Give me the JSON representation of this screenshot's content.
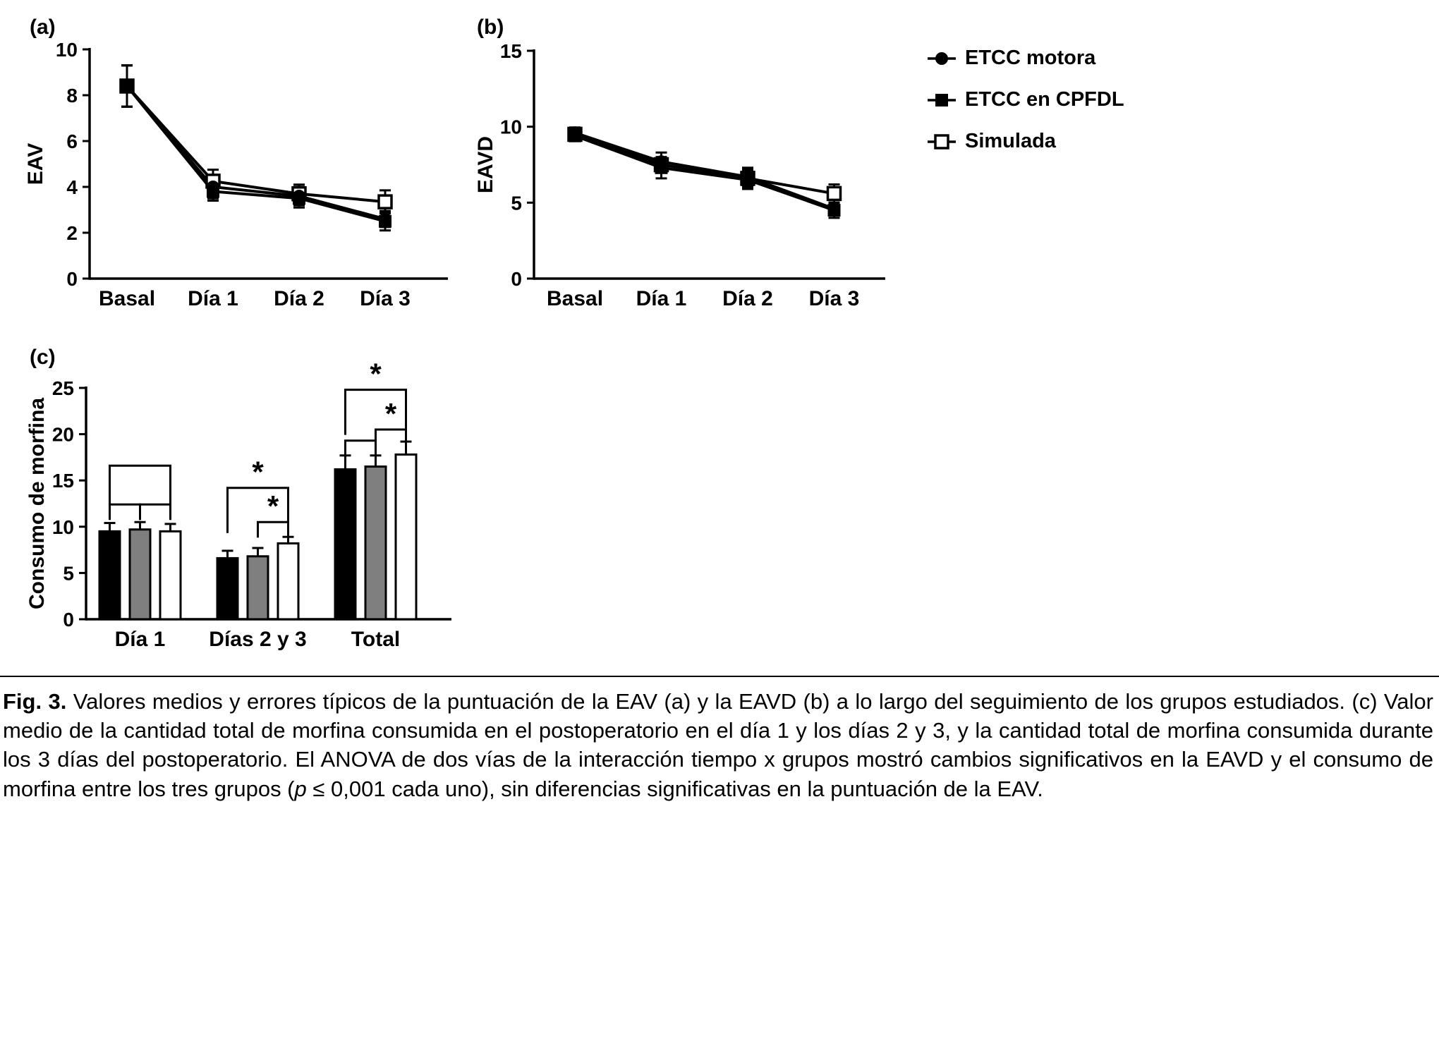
{
  "figure": {
    "legend": {
      "items": [
        {
          "label": "ETCC motora",
          "marker": "filled-circle"
        },
        {
          "label": "ETCC en CPFDL",
          "marker": "filled-square"
        },
        {
          "label": "Simulada",
          "marker": "open-square"
        }
      ]
    },
    "caption": {
      "parts": [
        {
          "text": "Fig. 3.",
          "style": "bold"
        },
        {
          "text": " Valores medios y errores típicos de la puntuación de la EAV (a) y la EAVD (b) a lo largo del seguimiento de los grupos estudiados. (c) Valor medio de la cantidad total de morfina consumida en el postoperatorio en el día 1 y los días 2 y 3, y la cantidad total de morfina consumida durante los 3 días del postoperatorio. El ANOVA de dos vías de la interacción tiempo x grupos mostró cambios significativos en la EAVD y el consumo de morfina entre los tres grupos (",
          "style": "normal"
        },
        {
          "text": "p",
          "style": "italic"
        },
        {
          "text": " ≤ 0,001 cada uno), sin diferencias significativas en la puntuación de la EAV.",
          "style": "normal"
        }
      ]
    }
  },
  "colors": {
    "black": "#000000",
    "gray": "#7f7f7f",
    "white": "#ffffff"
  },
  "chart_data": [
    {
      "id": "a",
      "type": "line",
      "panel_label": "(a)",
      "ylabel": "EAV",
      "xlabel": "",
      "ylim": [
        0,
        10
      ],
      "yticks": [
        0,
        2,
        4,
        6,
        8,
        10
      ],
      "grid": false,
      "legend_position": "top-right-shared",
      "categories": [
        "Basal",
        "Día 1",
        "Día 2",
        "Día 3"
      ],
      "series": [
        {
          "name": "ETCC motora",
          "marker": "filled-circle",
          "values": [
            8.4,
            4.0,
            3.6,
            2.6
          ],
          "errors": [
            0.9,
            0.5,
            0.4,
            0.35
          ]
        },
        {
          "name": "ETCC en CPFDL",
          "marker": "filled-square",
          "values": [
            8.4,
            3.8,
            3.5,
            2.5
          ],
          "errors": [
            0.9,
            0.4,
            0.4,
            0.4
          ]
        },
        {
          "name": "Simulada",
          "marker": "open-square",
          "values": [
            8.4,
            4.25,
            3.7,
            3.35
          ],
          "errors": [
            0.9,
            0.5,
            0.4,
            0.5
          ]
        }
      ]
    },
    {
      "id": "b",
      "type": "line",
      "panel_label": "(b)",
      "ylabel": "EAVD",
      "xlabel": "",
      "ylim": [
        0,
        15
      ],
      "yticks": [
        0,
        5,
        10,
        15
      ],
      "grid": false,
      "legend_position": "top-right-shared",
      "categories": [
        "Basal",
        "Día 1",
        "Día 2",
        "Día 3"
      ],
      "series": [
        {
          "name": "ETCC motora",
          "marker": "filled-circle",
          "values": [
            9.6,
            7.7,
            6.7,
            4.6
          ],
          "errors": [
            0.35,
            0.6,
            0.6,
            0.4
          ]
        },
        {
          "name": "ETCC en CPFDL",
          "marker": "filled-square",
          "values": [
            9.4,
            7.3,
            6.5,
            4.5
          ],
          "errors": [
            0.35,
            0.7,
            0.6,
            0.5
          ]
        },
        {
          "name": "Simulada",
          "marker": "open-square",
          "values": [
            9.5,
            7.5,
            6.6,
            5.6
          ],
          "errors": [
            0.35,
            0.5,
            0.6,
            0.6
          ]
        }
      ]
    },
    {
      "id": "c",
      "type": "bar",
      "panel_label": "(c)",
      "ylabel": "Consumo de morfina",
      "xlabel": "",
      "ylim": [
        0,
        25
      ],
      "yticks": [
        0,
        5,
        10,
        15,
        20,
        25
      ],
      "grid": false,
      "categories": [
        "Día 1",
        "Días 2 y 3",
        "Total"
      ],
      "series": [
        {
          "name": "ETCC motora",
          "fill": "#000000",
          "values": [
            9.5,
            6.6,
            16.2
          ],
          "errors": [
            0.9,
            0.8,
            1.5
          ]
        },
        {
          "name": "ETCC en CPFDL",
          "fill": "#7f7f7f",
          "values": [
            9.7,
            6.8,
            16.5
          ],
          "errors": [
            0.8,
            0.9,
            1.2
          ]
        },
        {
          "name": "Simulada",
          "fill": "#ffffff",
          "values": [
            9.5,
            8.2,
            17.8
          ],
          "errors": [
            0.8,
            0.7,
            1.4
          ]
        }
      ],
      "significance": [
        {
          "group": 0,
          "bars": [
            0,
            2
          ],
          "y": 16.6,
          "label": ""
        },
        {
          "group": 0,
          "bars": [
            0,
            1
          ],
          "y": 12.4,
          "label": ""
        },
        {
          "group": 0,
          "bars": [
            1,
            2
          ],
          "y": 12.4,
          "label": ""
        },
        {
          "group": 1,
          "bars": [
            0,
            2
          ],
          "y": 14.2,
          "label": "*"
        },
        {
          "group": 1,
          "bars": [
            1,
            2
          ],
          "y": 10.5,
          "label": "*"
        },
        {
          "group": 2,
          "bars": [
            0,
            2
          ],
          "y": 24.8,
          "label": "*"
        },
        {
          "group": 2,
          "bars": [
            0,
            1
          ],
          "y": 19.3,
          "label": ""
        },
        {
          "group": 2,
          "bars": [
            1,
            2
          ],
          "y": 20.5,
          "label": "*"
        }
      ]
    }
  ]
}
